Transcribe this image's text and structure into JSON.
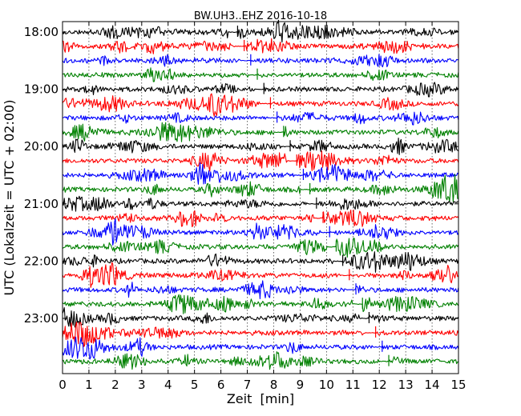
{
  "chart_data": {
    "type": "line",
    "title": "BW.UH3..EHZ 2016-10-18",
    "xlabel": "Zeit  [min]",
    "ylabel": "UTC (Lokalzeit = UTC + 02:00)",
    "xlim": [
      0,
      15
    ],
    "x_ticks": [
      0,
      1,
      2,
      3,
      4,
      5,
      6,
      7,
      8,
      9,
      10,
      11,
      12,
      13,
      14,
      15
    ],
    "x_tick_labels": [
      "0",
      "1",
      "2",
      "3",
      "4",
      "5",
      "6",
      "7",
      "8",
      "9",
      "10",
      "11",
      "12",
      "13",
      "14",
      "15"
    ],
    "y_tick_labels": [
      "18:00",
      "19:00",
      "20:00",
      "21:00",
      "22:00",
      "23:00"
    ],
    "row_interval_minutes": 15,
    "row_start": "18:00",
    "row_count": 24,
    "color_cycle": [
      "#000000",
      "#ff0000",
      "#0000ff",
      "#008000"
    ],
    "grid": "vertical dotted",
    "legend": "none"
  }
}
